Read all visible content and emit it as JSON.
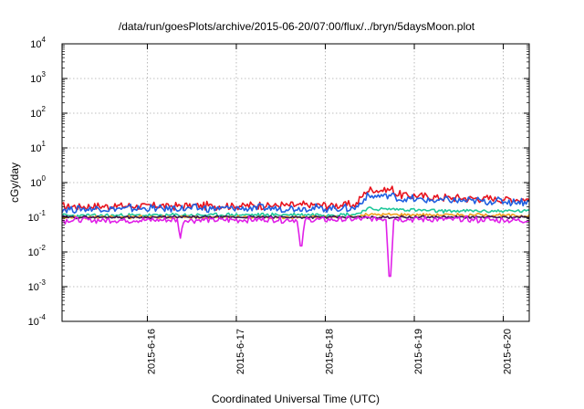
{
  "chart_data": {
    "type": "line",
    "title": "/data/run/goesPlots/archive/2015-06-20/07:00/flux/../bryn/5daysMoon.plot",
    "xlabel": "Coordinated Universal Time (UTC)",
    "ylabel": "cGy/day",
    "yscale": "log",
    "ylim": [
      0.0001,
      10000
    ],
    "xlim": [
      "2015-06-15 01:00",
      "2015-06-20 07:00"
    ],
    "x_ticks": [
      "2015-6-16",
      "2015-6-17",
      "2015-6-18",
      "2015-6-19",
      "2015-6-20"
    ],
    "y_ticks": [
      {
        "base": "10",
        "exp": "-4"
      },
      {
        "base": "10",
        "exp": "-3"
      },
      {
        "base": "10",
        "exp": "-2"
      },
      {
        "base": "10",
        "exp": "-1"
      },
      {
        "base": "10",
        "exp": "0"
      },
      {
        "base": "10",
        "exp": "1"
      },
      {
        "base": "10",
        "exp": "2"
      },
      {
        "base": "10",
        "exp": "3"
      },
      {
        "base": "10",
        "exp": "4"
      }
    ],
    "grid": true,
    "series": [
      {
        "color": "#e8141e",
        "base": [
          [
            0,
            0.2
          ],
          [
            3.3,
            0.22
          ],
          [
            3.42,
            0.58
          ],
          [
            3.6,
            0.6
          ],
          [
            3.72,
            0.62
          ],
          [
            3.75,
            0.45
          ],
          [
            4.0,
            0.4
          ],
          [
            4.2,
            0.36
          ],
          [
            5.25,
            0.32
          ]
        ],
        "noise": 0.26,
        "dips": []
      },
      {
        "color": "#1f5fe0",
        "base": [
          [
            0,
            0.17
          ],
          [
            3.3,
            0.18
          ],
          [
            3.42,
            0.38
          ],
          [
            3.72,
            0.42
          ],
          [
            3.75,
            0.34
          ],
          [
            4.2,
            0.3
          ],
          [
            5.25,
            0.27
          ]
        ],
        "noise": 0.26,
        "dips": []
      },
      {
        "color": "#20c89a",
        "base": [
          [
            0,
            0.11
          ],
          [
            3.3,
            0.12
          ],
          [
            3.42,
            0.17
          ],
          [
            3.72,
            0.17
          ],
          [
            4.2,
            0.15
          ],
          [
            5.25,
            0.15
          ]
        ],
        "noise": 0.12,
        "dips": []
      },
      {
        "color": "#f0a020",
        "base": [
          [
            0,
            0.1
          ],
          [
            3.3,
            0.1
          ],
          [
            3.42,
            0.12
          ],
          [
            3.72,
            0.12
          ],
          [
            5.25,
            0.11
          ]
        ],
        "noise": 0.1,
        "dips": []
      },
      {
        "color": "#3a1850",
        "base": [
          [
            0,
            0.1
          ],
          [
            5.25,
            0.1
          ]
        ],
        "noise": 0.08,
        "dips": []
      },
      {
        "color": "#e020e8",
        "base": [
          [
            0,
            0.08
          ],
          [
            3.3,
            0.085
          ],
          [
            3.42,
            0.09
          ],
          [
            5.25,
            0.08
          ]
        ],
        "noise": 0.2,
        "dips": [
          [
            1.33,
            0.025
          ],
          [
            2.69,
            0.015
          ],
          [
            3.68,
            0.002
          ]
        ]
      }
    ]
  }
}
